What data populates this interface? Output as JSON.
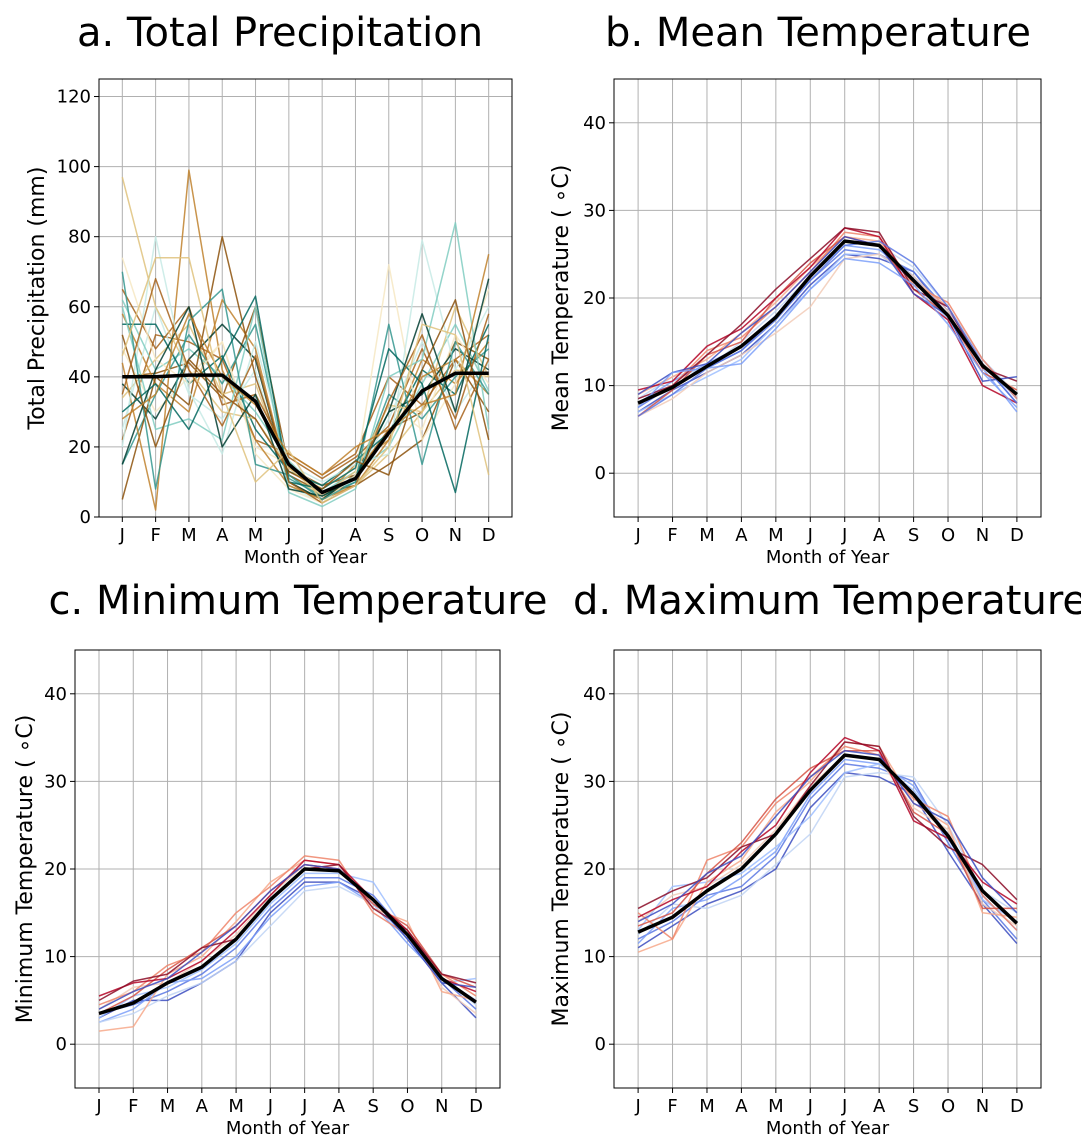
{
  "figure": {
    "months": [
      "J",
      "F",
      "M",
      "A",
      "M",
      "J",
      "J",
      "A",
      "S",
      "O",
      "N",
      "D"
    ]
  },
  "chart_data": [
    {
      "type": "line",
      "title": "a. Total Precipitation",
      "xlabel": "Month of Year",
      "ylabel": "Total Precipitation (mm)",
      "categories": [
        "J",
        "F",
        "M",
        "A",
        "M",
        "J",
        "J",
        "A",
        "S",
        "O",
        "N",
        "D"
      ],
      "ylim": [
        0,
        125
      ],
      "yticks": [
        0,
        20,
        40,
        60,
        80,
        100,
        120
      ],
      "grid": true,
      "palette": [
        "#8c510a",
        "#a6611a",
        "#bf812d",
        "#dfc27d",
        "#f6e8c3",
        "#c7eae5",
        "#80cdc1",
        "#35978f",
        "#01665e",
        "#003c30"
      ],
      "series": [
        {
          "values": [
            40,
            41,
            44,
            34,
            60,
            14,
            9,
            12,
            25,
            30,
            50,
            45
          ]
        },
        {
          "values": [
            22,
            52,
            50,
            45,
            22,
            18,
            12,
            18,
            40,
            32,
            45,
            52
          ]
        },
        {
          "values": [
            58,
            38,
            30,
            62,
            48,
            10,
            5,
            15,
            22,
            45,
            38,
            50
          ]
        },
        {
          "values": [
            34,
            45,
            55,
            35,
            38,
            12,
            6,
            9,
            18,
            30,
            42,
            40
          ]
        },
        {
          "values": [
            48,
            30,
            40,
            50,
            20,
            15,
            8,
            14,
            32,
            25,
            52,
            38
          ]
        },
        {
          "values": [
            25,
            60,
            35,
            28,
            42,
            9,
            4,
            11,
            28,
            50,
            30,
            44
          ]
        },
        {
          "values": [
            62,
            42,
            48,
            40,
            30,
            16,
            7,
            13,
            20,
            38,
            55,
            36
          ]
        },
        {
          "values": [
            15,
            35,
            52,
            38,
            55,
            11,
            6,
            10,
            35,
            28,
            40,
            48
          ]
        },
        {
          "values": [
            55,
            55,
            38,
            46,
            25,
            13,
            9,
            16,
            24,
            42,
            35,
            55
          ]
        },
        {
          "values": [
            38,
            28,
            45,
            55,
            45,
            10,
            5,
            12,
            30,
            35,
            48,
            42
          ]
        },
        {
          "values": [
            5,
            40,
            32,
            80,
            40,
            12,
            7,
            9,
            15,
            22,
            45,
            30
          ]
        },
        {
          "values": [
            65,
            48,
            60,
            32,
            35,
            17,
            11,
            17,
            26,
            48,
            28,
            58
          ]
        },
        {
          "values": [
            44,
            2,
            99,
            42,
            22,
            9,
            5,
            9,
            22,
            40,
            45,
            35
          ]
        },
        {
          "values": [
            97,
            60,
            42,
            30,
            28,
            14,
            6,
            13,
            32,
            30,
            60,
            40
          ]
        },
        {
          "values": [
            74,
            45,
            38,
            50,
            18,
            8,
            4,
            12,
            72,
            22,
            38,
            65
          ]
        },
        {
          "values": [
            20,
            80,
            36,
            18,
            50,
            15,
            10,
            15,
            18,
            79,
            42,
            60
          ]
        },
        {
          "values": [
            60,
            25,
            28,
            22,
            60,
            7,
            3,
            8,
            40,
            45,
            84,
            25
          ]
        },
        {
          "values": [
            70,
            8,
            56,
            65,
            15,
            12,
            5,
            10,
            55,
            15,
            50,
            35
          ]
        },
        {
          "values": [
            30,
            38,
            25,
            45,
            63,
            10,
            8,
            14,
            48,
            38,
            7,
            52
          ]
        },
        {
          "values": [
            15,
            42,
            60,
            20,
            35,
            8,
            6,
            11,
            30,
            58,
            30,
            68
          ]
        },
        {
          "values": [
            52,
            20,
            45,
            35,
            28,
            13,
            8,
            16,
            12,
            42,
            62,
            22
          ]
        },
        {
          "values": [
            35,
            68,
            42,
            26,
            46,
            10,
            4,
            9,
            33,
            52,
            25,
            45
          ]
        },
        {
          "values": [
            28,
            35,
            58,
            40,
            32,
            18,
            12,
            20,
            25,
            32,
            35,
            75
          ]
        },
        {
          "values": [
            46,
            74,
            74,
            35,
            10,
            19,
            4,
            9,
            20,
            55,
            52,
            12
          ]
        }
      ],
      "mean": [
        40,
        40,
        40.5,
        40.5,
        33,
        15,
        7,
        11,
        24,
        36,
        41,
        41
      ]
    },
    {
      "type": "line",
      "title": "b. Mean Temperature",
      "xlabel": "Month of Year",
      "ylabel": "Mean Temperature ( ∘C)",
      "categories": [
        "J",
        "F",
        "M",
        "A",
        "M",
        "J",
        "J",
        "A",
        "S",
        "O",
        "N",
        "D"
      ],
      "ylim": [
        -5,
        45
      ],
      "yticks": [
        0,
        10,
        20,
        30,
        40
      ],
      "grid": true,
      "palette": [
        "#3b4cc0",
        "#5977e3",
        "#7b9ff9",
        "#9ebeff",
        "#c0d4f5",
        "#f2cbb7",
        "#f7a889",
        "#ee8468",
        "#d65244",
        "#b40426",
        "#8b0a26"
      ],
      "series": [
        {
          "values": [
            7.0,
            9.5,
            11.5,
            13.5,
            17.0,
            21.5,
            25.0,
            24.5,
            23.0,
            18.0,
            12.5,
            8.0
          ]
        },
        {
          "values": [
            7.5,
            10.0,
            12.0,
            14.0,
            17.5,
            22.0,
            25.5,
            25.0,
            23.0,
            18.5,
            13.0,
            8.5
          ]
        },
        {
          "values": [
            8.0,
            10.5,
            12.5,
            14.5,
            18.0,
            22.5,
            26.0,
            25.5,
            22.5,
            18.0,
            12.0,
            7.0
          ]
        },
        {
          "values": [
            7.0,
            9.0,
            11.0,
            13.0,
            17.0,
            21.0,
            25.0,
            25.0,
            22.0,
            17.5,
            12.5,
            8.5
          ]
        },
        {
          "values": [
            8.5,
            11.0,
            12.0,
            15.0,
            18.5,
            22.5,
            26.5,
            26.0,
            23.5,
            19.0,
            13.0,
            9.0
          ]
        },
        {
          "values": [
            6.5,
            8.5,
            11.5,
            13.5,
            16.0,
            19.0,
            24.5,
            25.0,
            22.5,
            18.5,
            12.0,
            9.5
          ]
        },
        {
          "values": [
            9.0,
            11.0,
            13.0,
            16.0,
            19.5,
            23.5,
            27.0,
            26.5,
            22.0,
            19.0,
            12.5,
            9.0
          ]
        },
        {
          "values": [
            8.0,
            10.0,
            14.0,
            15.5,
            19.0,
            23.0,
            27.5,
            27.0,
            21.5,
            19.5,
            13.0,
            8.5
          ]
        },
        {
          "values": [
            6.5,
            9.5,
            13.5,
            15.0,
            20.0,
            24.0,
            27.0,
            26.0,
            21.0,
            18.0,
            11.5,
            9.5
          ]
        },
        {
          "values": [
            9.5,
            10.5,
            14.5,
            16.5,
            20.0,
            23.5,
            28.0,
            27.0,
            20.5,
            17.5,
            10.0,
            8.0
          ]
        },
        {
          "values": [
            8.5,
            10.0,
            13.5,
            17.0,
            21.0,
            24.5,
            28.0,
            27.5,
            21.0,
            19.0,
            12.0,
            10.5
          ]
        },
        {
          "values": [
            9.0,
            11.5,
            12.5,
            16.0,
            19.0,
            23.0,
            27.0,
            26.0,
            20.5,
            18.0,
            10.5,
            11.0
          ]
        },
        {
          "values": [
            6.5,
            9.0,
            12.0,
            14.0,
            18.0,
            22.0,
            26.0,
            26.5,
            24.0,
            19.0,
            12.5,
            8.0
          ]
        },
        {
          "values": [
            7.5,
            11.5,
            12.0,
            12.5,
            16.5,
            21.0,
            24.5,
            24.0,
            21.5,
            17.0,
            11.5,
            7.5
          ]
        }
      ],
      "mean": [
        8.0,
        9.8,
        12.2,
        14.5,
        17.8,
        22.5,
        26.5,
        26.0,
        22.0,
        18.0,
        12.3,
        9.0
      ]
    },
    {
      "type": "line",
      "title": "c. Minimum Temperature",
      "xlabel": "Month of Year",
      "ylabel": "Minimum Temperature ( ∘C)",
      "categories": [
        "J",
        "F",
        "M",
        "A",
        "M",
        "J",
        "J",
        "A",
        "S",
        "O",
        "N",
        "D"
      ],
      "ylim": [
        -5,
        45
      ],
      "yticks": [
        0,
        10,
        20,
        30,
        40
      ],
      "grid": true,
      "palette": [
        "#3b4cc0",
        "#5977e3",
        "#7b9ff9",
        "#9ebeff",
        "#c0d4f5",
        "#f2cbb7",
        "#f7a889",
        "#ee8468",
        "#d65244",
        "#b40426",
        "#8b0a26"
      ],
      "series": [
        {
          "values": [
            3.0,
            5.0,
            5.0,
            7.0,
            9.5,
            15.0,
            18.5,
            18.5,
            16.5,
            12.0,
            7.0,
            3.0
          ]
        },
        {
          "values": [
            3.5,
            4.5,
            6.0,
            8.0,
            11.0,
            15.5,
            19.0,
            19.0,
            17.0,
            12.5,
            7.5,
            4.0
          ]
        },
        {
          "values": [
            2.5,
            4.0,
            7.0,
            7.5,
            10.0,
            14.5,
            18.0,
            18.5,
            16.0,
            11.5,
            7.5,
            5.0
          ]
        },
        {
          "values": [
            3.0,
            5.5,
            6.5,
            8.5,
            11.5,
            16.0,
            19.5,
            19.5,
            18.5,
            12.5,
            7.0,
            7.5
          ]
        },
        {
          "values": [
            2.5,
            3.5,
            5.5,
            7.0,
            9.5,
            13.5,
            17.5,
            18.0,
            16.0,
            12.0,
            7.5,
            4.5
          ]
        },
        {
          "values": [
            4.0,
            6.5,
            7.0,
            9.5,
            12.5,
            17.0,
            20.5,
            20.0,
            16.5,
            13.0,
            6.5,
            3.5
          ]
        },
        {
          "values": [
            1.5,
            2.0,
            8.0,
            10.0,
            14.0,
            18.5,
            21.0,
            20.5,
            15.5,
            14.0,
            6.0,
            5.0
          ]
        },
        {
          "values": [
            4.5,
            6.0,
            9.0,
            10.5,
            15.0,
            18.0,
            21.5,
            21.0,
            15.0,
            12.5,
            8.0,
            5.5
          ]
        },
        {
          "values": [
            3.5,
            5.5,
            8.5,
            11.0,
            13.5,
            17.5,
            20.5,
            20.0,
            16.0,
            13.5,
            8.0,
            6.5
          ]
        },
        {
          "values": [
            5.5,
            7.0,
            7.5,
            9.5,
            13.0,
            17.0,
            21.0,
            20.5,
            16.5,
            13.0,
            7.5,
            6.0
          ]
        },
        {
          "values": [
            5.0,
            7.2,
            8.0,
            11.0,
            12.0,
            16.5,
            20.0,
            20.5,
            15.5,
            13.0,
            8.0,
            7.0
          ]
        },
        {
          "values": [
            4.0,
            6.0,
            7.5,
            10.5,
            13.5,
            17.5,
            20.5,
            20.0,
            16.5,
            12.0,
            7.0,
            6.5
          ]
        }
      ],
      "mean": [
        3.5,
        4.7,
        7.0,
        8.8,
        12.0,
        16.5,
        20.0,
        19.8,
        16.5,
        12.5,
        7.5,
        4.8
      ]
    },
    {
      "type": "line",
      "title": "d. Maximum Temperature",
      "xlabel": "Month of Year",
      "ylabel": "Maximum Temperature ( ∘C)",
      "categories": [
        "J",
        "F",
        "M",
        "A",
        "M",
        "J",
        "J",
        "A",
        "S",
        "O",
        "N",
        "D"
      ],
      "ylim": [
        -5,
        45
      ],
      "yticks": [
        0,
        10,
        20,
        30,
        40
      ],
      "grid": true,
      "palette": [
        "#3b4cc0",
        "#5977e3",
        "#7b9ff9",
        "#9ebeff",
        "#c0d4f5",
        "#f2cbb7",
        "#f7a889",
        "#ee8468",
        "#d65244",
        "#b40426",
        "#8b0a26"
      ],
      "series": [
        {
          "values": [
            11.0,
            13.5,
            16.0,
            17.5,
            20.0,
            27.0,
            31.0,
            30.5,
            28.5,
            22.0,
            16.0,
            11.5
          ]
        },
        {
          "values": [
            12.0,
            14.0,
            17.0,
            18.0,
            21.5,
            28.0,
            32.0,
            31.5,
            30.0,
            23.0,
            16.5,
            12.0
          ]
        },
        {
          "values": [
            11.5,
            15.5,
            16.5,
            19.0,
            22.0,
            28.5,
            32.5,
            32.0,
            29.5,
            23.5,
            17.0,
            13.0
          ]
        },
        {
          "values": [
            13.0,
            18.0,
            18.5,
            19.5,
            22.5,
            26.0,
            31.0,
            32.0,
            29.0,
            24.0,
            16.5,
            14.0
          ]
        },
        {
          "values": [
            12.5,
            16.0,
            15.5,
            17.0,
            20.5,
            24.0,
            30.5,
            31.0,
            30.5,
            25.0,
            17.5,
            15.0
          ]
        },
        {
          "values": [
            14.0,
            17.0,
            18.0,
            20.5,
            24.5,
            29.5,
            33.0,
            32.5,
            27.0,
            24.5,
            16.0,
            13.5
          ]
        },
        {
          "values": [
            10.5,
            12.0,
            18.5,
            21.0,
            26.5,
            30.0,
            34.5,
            34.0,
            27.5,
            25.0,
            15.0,
            14.5
          ]
        },
        {
          "values": [
            15.0,
            12.0,
            21.0,
            22.5,
            27.5,
            30.5,
            34.0,
            33.0,
            28.0,
            26.0,
            17.0,
            13.0
          ]
        },
        {
          "values": [
            13.5,
            15.0,
            19.5,
            23.0,
            28.0,
            31.5,
            33.5,
            33.5,
            26.5,
            24.0,
            15.5,
            15.5
          ]
        },
        {
          "values": [
            14.5,
            16.5,
            18.0,
            22.0,
            25.0,
            31.0,
            35.0,
            33.5,
            25.5,
            23.5,
            18.5,
            16.0
          ]
        },
        {
          "values": [
            15.5,
            17.5,
            19.0,
            22.5,
            24.0,
            29.5,
            34.5,
            34.0,
            26.0,
            22.5,
            20.5,
            16.5
          ]
        },
        {
          "values": [
            14.0,
            16.0,
            19.5,
            21.5,
            26.0,
            30.5,
            33.5,
            33.0,
            27.5,
            25.5,
            19.0,
            15.0
          ]
        }
      ],
      "mean": [
        12.8,
        14.5,
        17.5,
        20.0,
        24.0,
        29.0,
        33.0,
        32.5,
        28.5,
        23.8,
        17.5,
        13.8
      ]
    }
  ]
}
